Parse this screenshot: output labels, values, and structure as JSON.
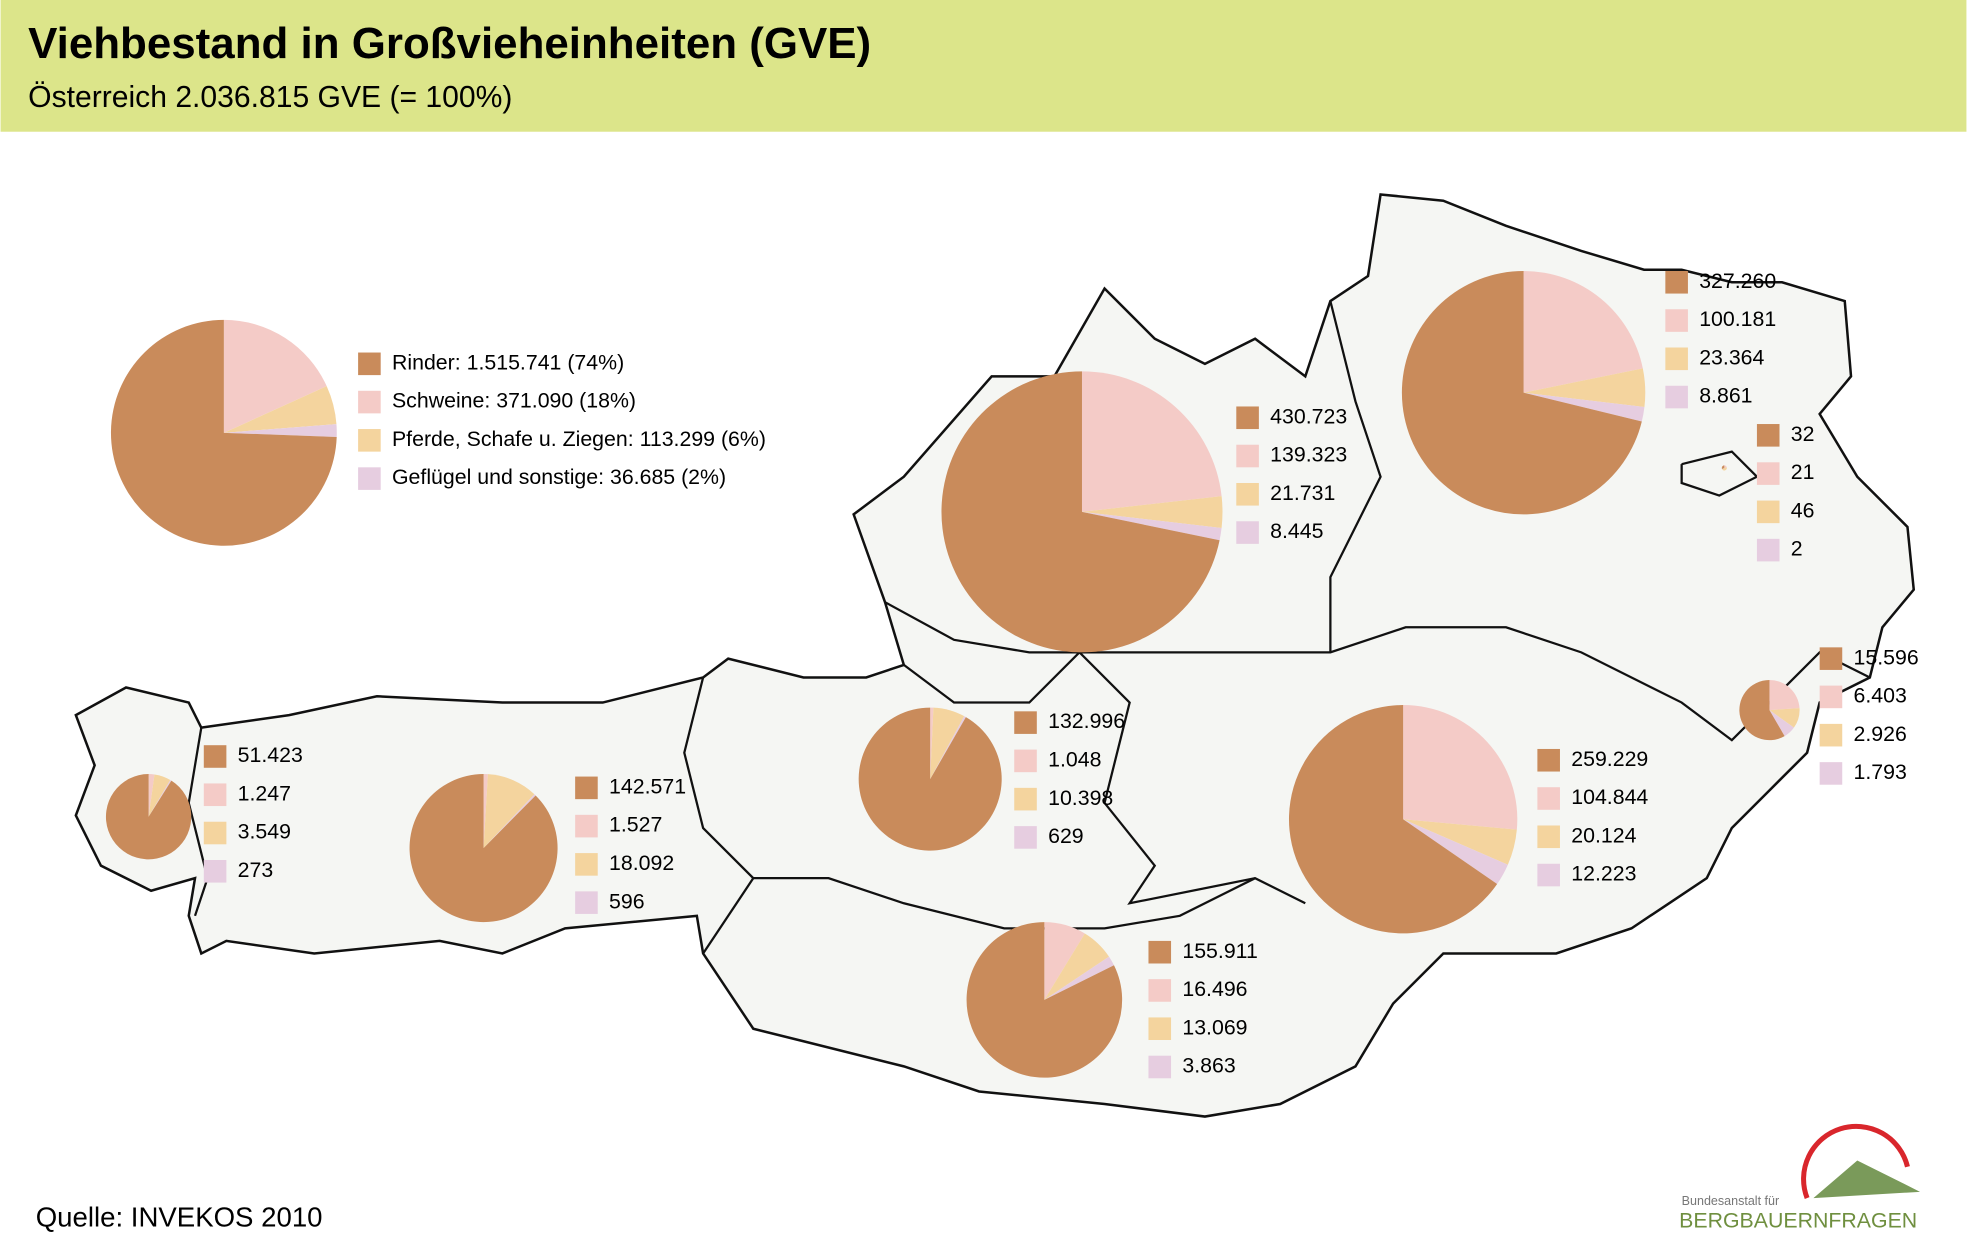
{
  "header": {
    "title": "Viehbestand in Großvieheinheiten (GVE)",
    "subtitle": "Österreich 2.036.815 GVE (= 100%)"
  },
  "legend": {
    "items": [
      "Rinder: 1.515.741 (74%)",
      "Schweine: 371.090 (18%)",
      "Pferde, Schafe u. Ziegen: 113.299 (6%)",
      "Geflügel und sonstige: 36.685 (2%)"
    ],
    "colors": [
      "#c98b5b",
      "#f4cbc7",
      "#f4d49e",
      "#e6cde0"
    ]
  },
  "pies": [
    {
      "values": [
        1515741,
        371090,
        113299,
        36685
      ]
    },
    {
      "values": [
        327260,
        100181,
        23364,
        8861
      ],
      "value_labels": [
        "327.260",
        "100.181",
        "23.364",
        "8.861"
      ]
    },
    {
      "values": [
        32,
        21,
        46,
        2
      ]
    },
    {
      "values": [
        430723,
        139323,
        21731,
        8445
      ],
      "value_labels": [
        "430.723",
        "139.323",
        "21.731",
        "8.445"
      ]
    },
    {
      "values": [
        15596,
        6403,
        2926,
        1793
      ],
      "value_labels": [
        "15.596",
        "6.403",
        "2.926",
        "1.793"
      ]
    },
    {
      "values": [
        259229,
        104844,
        20124,
        12223
      ],
      "value_labels": [
        "259.229",
        "104.844",
        "20.124",
        "12.223"
      ]
    },
    {
      "values": [
        132996,
        1048,
        10398,
        629
      ],
      "value_labels": [
        "132.996",
        "1.048",
        "10.398",
        "629"
      ]
    },
    {
      "values": [
        142571,
        1527,
        18092,
        596
      ],
      "value_labels": [
        "142.571",
        "1.527",
        "18.092",
        "596"
      ]
    },
    {
      "values": [
        51423,
        1247,
        3549,
        273
      ],
      "value_labels": [
        "51.423",
        "1.247",
        "3.549",
        "273"
      ]
    },
    {
      "values": [
        155911,
        16496,
        13069,
        3863
      ],
      "value_labels": [
        "155.911",
        "16.496",
        "13.069",
        "3.863"
      ]
    }
  ],
  "source": "Quelle: INVEKOS 2010",
  "logo": {
    "line1": "Bundesanstalt für",
    "line2": "BERGBAUERNFRAGEN"
  }
}
